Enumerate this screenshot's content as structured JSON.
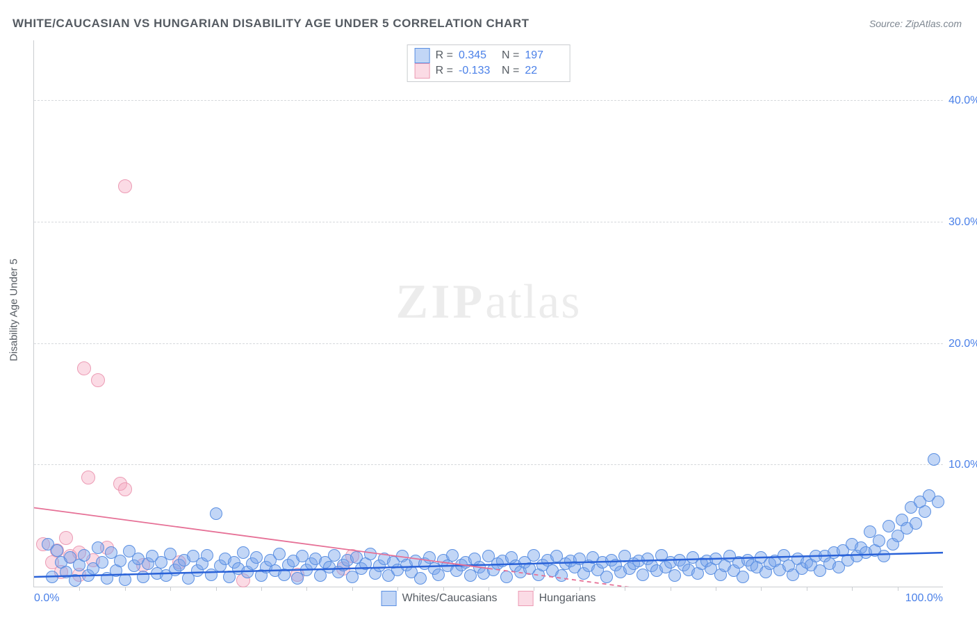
{
  "title": "WHITE/CAUCASIAN VS HUNGARIAN DISABILITY AGE UNDER 5 CORRELATION CHART",
  "source": "Source: ZipAtlas.com",
  "ylabel": "Disability Age Under 5",
  "watermark_zip": "ZIP",
  "watermark_atlas": "atlas",
  "chart": {
    "type": "scatter",
    "xlim": [
      0,
      100
    ],
    "ylim": [
      0,
      45
    ],
    "yticks": [
      10,
      20,
      30,
      40
    ],
    "ytick_labels": [
      "10.0%",
      "20.0%",
      "30.0%",
      "40.0%"
    ],
    "xtick_left": "0.0%",
    "xtick_right": "100.0%",
    "xtick_minors": [
      5,
      10,
      15,
      20,
      25,
      30,
      35,
      40,
      45,
      50,
      55,
      60,
      65,
      70,
      75,
      80,
      85,
      90,
      95
    ],
    "grid_color": "#d6d9dc",
    "axis_color": "#c9ccd0",
    "background_color": "#ffffff",
    "point_radius": 8
  },
  "series": {
    "blue": {
      "label": "Whites/Caucasians",
      "color_fill": "rgba(120,165,236,0.45)",
      "color_stroke": "#5a8fe2",
      "R": "0.345",
      "N": "197",
      "trend": {
        "x1": 0,
        "y1": 0.8,
        "x2": 100,
        "y2": 2.8,
        "color": "#2a62d8",
        "width": 2.5,
        "dash": "none"
      },
      "points": [
        [
          1.5,
          3.5
        ],
        [
          2,
          0.8
        ],
        [
          2.5,
          3.0
        ],
        [
          3,
          2.0
        ],
        [
          3.5,
          1.2
        ],
        [
          4,
          2.4
        ],
        [
          4.5,
          0.5
        ],
        [
          5,
          1.8
        ],
        [
          5.5,
          2.6
        ],
        [
          6,
          0.9
        ],
        [
          6.5,
          1.5
        ],
        [
          7,
          3.2
        ],
        [
          7.5,
          2.0
        ],
        [
          8,
          0.7
        ],
        [
          8.5,
          2.8
        ],
        [
          9,
          1.3
        ],
        [
          9.5,
          2.1
        ],
        [
          10,
          0.6
        ],
        [
          10.5,
          2.9
        ],
        [
          11,
          1.7
        ],
        [
          11.5,
          2.3
        ],
        [
          12,
          0.8
        ],
        [
          12.5,
          1.9
        ],
        [
          13,
          2.5
        ],
        [
          13.5,
          1.1
        ],
        [
          14,
          2.0
        ],
        [
          14.5,
          0.9
        ],
        [
          15,
          2.7
        ],
        [
          15.5,
          1.4
        ],
        [
          16,
          1.8
        ],
        [
          16.5,
          2.2
        ],
        [
          17,
          0.7
        ],
        [
          17.5,
          2.5
        ],
        [
          18,
          1.3
        ],
        [
          18.5,
          1.9
        ],
        [
          19,
          2.6
        ],
        [
          19.5,
          1.0
        ],
        [
          20,
          6.0
        ],
        [
          20.5,
          1.7
        ],
        [
          21,
          2.3
        ],
        [
          21.5,
          0.8
        ],
        [
          22,
          2.0
        ],
        [
          22.5,
          1.5
        ],
        [
          23,
          2.8
        ],
        [
          23.5,
          1.2
        ],
        [
          24,
          1.9
        ],
        [
          24.5,
          2.4
        ],
        [
          25,
          0.9
        ],
        [
          25.5,
          1.6
        ],
        [
          26,
          2.2
        ],
        [
          26.5,
          1.3
        ],
        [
          27,
          2.7
        ],
        [
          27.5,
          1.0
        ],
        [
          28,
          1.8
        ],
        [
          28.5,
          2.1
        ],
        [
          29,
          0.7
        ],
        [
          29.5,
          2.5
        ],
        [
          30,
          1.4
        ],
        [
          30.5,
          1.9
        ],
        [
          31,
          2.3
        ],
        [
          31.5,
          0.9
        ],
        [
          32,
          2.0
        ],
        [
          32.5,
          1.6
        ],
        [
          33,
          2.6
        ],
        [
          33.5,
          1.2
        ],
        [
          34,
          1.8
        ],
        [
          34.5,
          2.2
        ],
        [
          35,
          0.8
        ],
        [
          35.5,
          2.4
        ],
        [
          36,
          1.5
        ],
        [
          36.5,
          1.9
        ],
        [
          37,
          2.7
        ],
        [
          37.5,
          1.1
        ],
        [
          38,
          1.7
        ],
        [
          38.5,
          2.3
        ],
        [
          39,
          0.9
        ],
        [
          39.5,
          2.0
        ],
        [
          40,
          1.4
        ],
        [
          40.5,
          2.5
        ],
        [
          41,
          1.8
        ],
        [
          41.5,
          1.2
        ],
        [
          42,
          2.1
        ],
        [
          42.5,
          0.7
        ],
        [
          43,
          1.9
        ],
        [
          43.5,
          2.4
        ],
        [
          44,
          1.5
        ],
        [
          44.5,
          1.0
        ],
        [
          45,
          2.2
        ],
        [
          45.5,
          1.7
        ],
        [
          46,
          2.6
        ],
        [
          46.5,
          1.3
        ],
        [
          47,
          1.8
        ],
        [
          47.5,
          2.0
        ],
        [
          48,
          0.9
        ],
        [
          48.5,
          2.3
        ],
        [
          49,
          1.6
        ],
        [
          49.5,
          1.1
        ],
        [
          50,
          2.5
        ],
        [
          50.5,
          1.4
        ],
        [
          51,
          1.9
        ],
        [
          51.5,
          2.1
        ],
        [
          52,
          0.8
        ],
        [
          52.5,
          2.4
        ],
        [
          53,
          1.7
        ],
        [
          53.5,
          1.2
        ],
        [
          54,
          2.0
        ],
        [
          54.5,
          1.5
        ],
        [
          55,
          2.6
        ],
        [
          55.5,
          1.0
        ],
        [
          56,
          1.8
        ],
        [
          56.5,
          2.2
        ],
        [
          57,
          1.3
        ],
        [
          57.5,
          2.5
        ],
        [
          58,
          0.9
        ],
        [
          58.5,
          1.9
        ],
        [
          59,
          2.1
        ],
        [
          59.5,
          1.6
        ],
        [
          60,
          2.3
        ],
        [
          60.5,
          1.1
        ],
        [
          61,
          1.7
        ],
        [
          61.5,
          2.4
        ],
        [
          62,
          1.4
        ],
        [
          62.5,
          2.0
        ],
        [
          63,
          0.8
        ],
        [
          63.5,
          2.2
        ],
        [
          64,
          1.8
        ],
        [
          64.5,
          1.2
        ],
        [
          65,
          2.5
        ],
        [
          65.5,
          1.5
        ],
        [
          66,
          1.9
        ],
        [
          66.5,
          2.1
        ],
        [
          67,
          1.0
        ],
        [
          67.5,
          2.3
        ],
        [
          68,
          1.7
        ],
        [
          68.5,
          1.3
        ],
        [
          69,
          2.6
        ],
        [
          69.5,
          1.6
        ],
        [
          70,
          2.0
        ],
        [
          70.5,
          0.9
        ],
        [
          71,
          2.2
        ],
        [
          71.5,
          1.8
        ],
        [
          72,
          1.4
        ],
        [
          72.5,
          2.4
        ],
        [
          73,
          1.1
        ],
        [
          73.5,
          1.9
        ],
        [
          74,
          2.1
        ],
        [
          74.5,
          1.5
        ],
        [
          75,
          2.3
        ],
        [
          75.5,
          1.0
        ],
        [
          76,
          1.7
        ],
        [
          76.5,
          2.5
        ],
        [
          77,
          1.3
        ],
        [
          77.5,
          2.0
        ],
        [
          78,
          0.8
        ],
        [
          78.5,
          2.2
        ],
        [
          79,
          1.8
        ],
        [
          79.5,
          1.6
        ],
        [
          80,
          2.4
        ],
        [
          80.5,
          1.2
        ],
        [
          81,
          1.9
        ],
        [
          81.5,
          2.1
        ],
        [
          82,
          1.4
        ],
        [
          82.5,
          2.6
        ],
        [
          83,
          1.7
        ],
        [
          83.5,
          1.0
        ],
        [
          84,
          2.3
        ],
        [
          84.5,
          1.5
        ],
        [
          85,
          2.0
        ],
        [
          85.5,
          1.8
        ],
        [
          86,
          2.5
        ],
        [
          86.5,
          1.3
        ],
        [
          87,
          2.5
        ],
        [
          87.5,
          1.9
        ],
        [
          88,
          2.8
        ],
        [
          88.5,
          1.6
        ],
        [
          89,
          3.0
        ],
        [
          89.5,
          2.2
        ],
        [
          90,
          3.5
        ],
        [
          90.5,
          2.5
        ],
        [
          91,
          3.2
        ],
        [
          91.5,
          2.8
        ],
        [
          92,
          4.5
        ],
        [
          92.5,
          3.0
        ],
        [
          93,
          3.8
        ],
        [
          93.5,
          2.5
        ],
        [
          94,
          5.0
        ],
        [
          94.5,
          3.5
        ],
        [
          95,
          4.2
        ],
        [
          95.5,
          5.5
        ],
        [
          96,
          4.8
        ],
        [
          96.5,
          6.5
        ],
        [
          97,
          5.2
        ],
        [
          97.5,
          7.0
        ],
        [
          98,
          6.2
        ],
        [
          98.5,
          7.5
        ],
        [
          99,
          10.5
        ],
        [
          99.5,
          7.0
        ]
      ]
    },
    "pink": {
      "label": "Hungarians",
      "color_fill": "rgba(244,166,189,0.40)",
      "color_stroke": "#ec9bb4",
      "R": "-0.133",
      "N": "22",
      "trend_solid": {
        "x1": 0,
        "y1": 6.5,
        "x2": 50,
        "y2": 1.5,
        "color": "#e67096",
        "width": 1.8
      },
      "trend_dash": {
        "x1": 50,
        "y1": 1.5,
        "x2": 75,
        "y2": -1.0,
        "color": "#e67096",
        "width": 1.8
      },
      "points": [
        [
          1,
          3.5
        ],
        [
          2,
          2.0
        ],
        [
          2.5,
          3.0
        ],
        [
          3,
          1.2
        ],
        [
          3.5,
          4.0
        ],
        [
          4,
          2.5
        ],
        [
          5,
          2.8
        ],
        [
          5,
          1.0
        ],
        [
          5.5,
          18.0
        ],
        [
          6,
          9.0
        ],
        [
          6.5,
          2.2
        ],
        [
          7,
          17.0
        ],
        [
          8,
          3.2
        ],
        [
          9.5,
          8.5
        ],
        [
          10,
          8.0
        ],
        [
          10,
          33.0
        ],
        [
          12,
          1.8
        ],
        [
          16,
          2.0
        ],
        [
          23,
          0.5
        ],
        [
          29,
          1.0
        ],
        [
          34,
          1.5
        ],
        [
          35,
          2.5
        ]
      ]
    }
  },
  "legend": {
    "blue": "Whites/Caucasians",
    "pink": "Hungarians"
  },
  "stats_labels": {
    "R": "R =",
    "N": "N ="
  }
}
